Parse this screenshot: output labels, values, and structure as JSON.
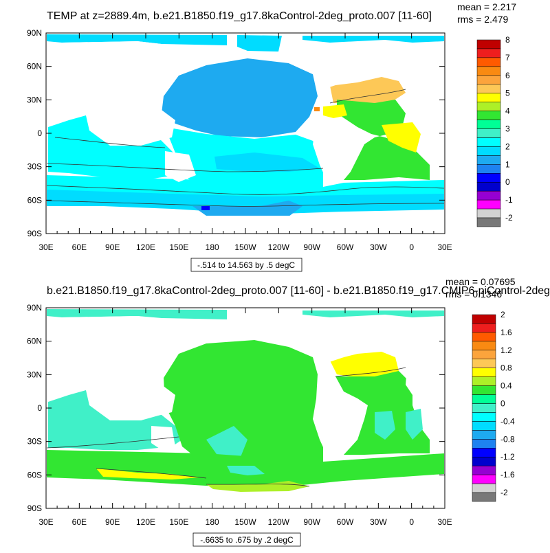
{
  "chart_data": [
    {
      "type": "heatmap",
      "title": "TEMP at z=2889.4m, b.e21.B1850.f19_g17.8kaControl-2deg_proto.007 [11-60]",
      "stats": {
        "mean": "mean = 2.217",
        "rms": "rms = 2.479"
      },
      "contour_info": "-.514 to 14.563 by .5 degC",
      "x_ticks": [
        "30E",
        "60E",
        "90E",
        "120E",
        "150E",
        "180",
        "150W",
        "120W",
        "90W",
        "60W",
        "30W",
        "0",
        "30E"
      ],
      "y_ticks": [
        "90N",
        "60N",
        "30N",
        "0",
        "30S",
        "60S",
        "90S"
      ],
      "colorbar": {
        "labels": [
          "8",
          "7",
          "6",
          "5",
          "4",
          "3",
          "2",
          "1",
          "0",
          "-1",
          "-2"
        ],
        "colors": [
          "#c00000",
          "#ee1e1e",
          "#ff5a00",
          "#f98a12",
          "#fca43c",
          "#fdc857",
          "#ffff00",
          "#adf028",
          "#32e632",
          "#00ff96",
          "#40f0c8",
          "#00ffff",
          "#00dcff",
          "#1eaaf0",
          "#1e82f0",
          "#0000ff",
          "#0000cd",
          "#9600d2",
          "#ff00ff",
          "#d2d2d2",
          "#787878"
        ]
      }
    },
    {
      "type": "heatmap",
      "title": "b.e21.B1850.f19_g17.8kaControl-2deg_proto.007 [11-60] - b.e21.B1850.f19_g17.CMIP6-piControl-2deg",
      "stats": {
        "mean": "mean = 0.07695",
        "rms": "rms = 0.1346"
      },
      "contour_info": "-.6635 to .675 by .2 degC",
      "x_ticks": [
        "30E",
        "60E",
        "90E",
        "120E",
        "150E",
        "180",
        "150W",
        "120W",
        "90W",
        "60W",
        "30W",
        "0",
        "30E"
      ],
      "y_ticks": [
        "90N",
        "60N",
        "30N",
        "0",
        "30S",
        "60S",
        "90S"
      ],
      "colorbar": {
        "labels": [
          "2",
          "1.6",
          "1.2",
          "0.8",
          "0.4",
          "0",
          "-0.4",
          "-0.8",
          "-1.2",
          "-1.6",
          "-2"
        ],
        "colors": [
          "#c00000",
          "#ee1e1e",
          "#ff5a00",
          "#f98a12",
          "#fca43c",
          "#fdc857",
          "#ffff00",
          "#adf028",
          "#32e632",
          "#00ff96",
          "#40f0c8",
          "#00ffff",
          "#00dcff",
          "#1eaaf0",
          "#1e82f0",
          "#0000ff",
          "#0000cd",
          "#9600d2",
          "#ff00ff",
          "#d2d2d2",
          "#787878"
        ]
      }
    }
  ]
}
